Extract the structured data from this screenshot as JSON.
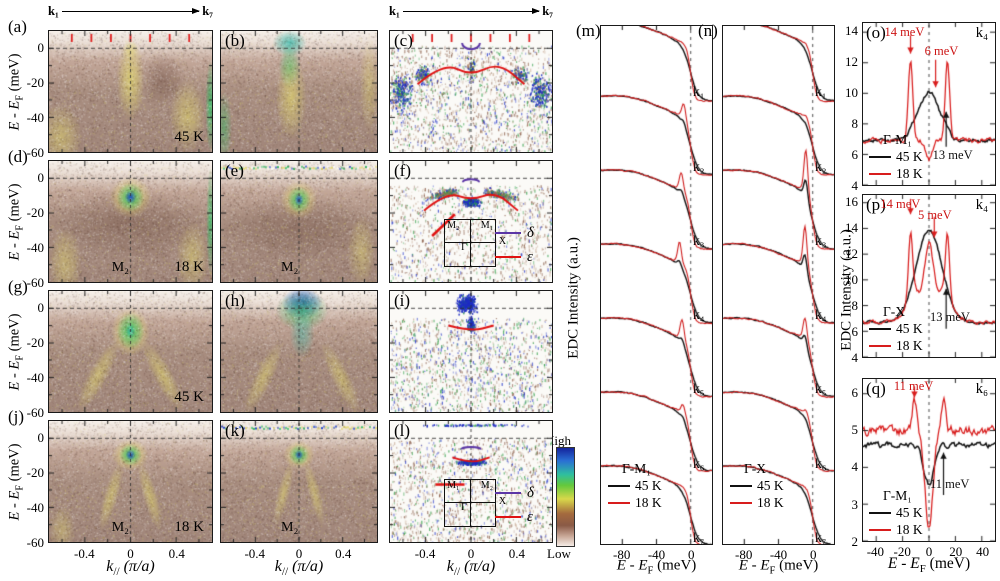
{
  "colors": {
    "red_18k": "#d81d1d",
    "black_45k": "#111111",
    "delta_purple": "#5b36a6",
    "epsilon_red": "#e01212"
  },
  "top_axis": {
    "start": "k₁",
    "end": "k₇"
  },
  "axis": {
    "e": "E",
    "minus": " - ",
    "f_sub": "F",
    "e_unit": " (meV)",
    "k": "k",
    "k_sub": "//",
    "k_unit": " (π/a)",
    "edc_ylabel": "EDC Intensity (a.u.)"
  },
  "left_grid": {
    "yticks": [
      "0",
      "-20",
      "-40",
      "-60"
    ],
    "xticks": [
      "-0.4",
      "0",
      "0.4"
    ],
    "band_legend": {
      "delta": "δ",
      "epsilon": "ε"
    },
    "panels": [
      {
        "id": "a",
        "label": "(a)",
        "temp": "45 K"
      },
      {
        "id": "b",
        "label": "(b)"
      },
      {
        "id": "c",
        "label": "(c)"
      },
      {
        "id": "d",
        "label": "(d)",
        "temp": "18 K",
        "point": "M₂"
      },
      {
        "id": "e",
        "label": "(e)",
        "point": "M₂"
      },
      {
        "id": "f",
        "label": "(f)",
        "inset": {
          "tl": "M₂",
          "tr": "M₁",
          "x": "X",
          "g": "Γ"
        }
      },
      {
        "id": "g",
        "label": "(g)",
        "temp": "45 K"
      },
      {
        "id": "h",
        "label": "(h)"
      },
      {
        "id": "i",
        "label": "(i)"
      },
      {
        "id": "j",
        "label": "(j)",
        "temp": "18 K",
        "point": "M₂"
      },
      {
        "id": "k",
        "label": "(k)",
        "point": "M₂"
      },
      {
        "id": "l",
        "label": "(l)",
        "inset": {
          "tl": "M₁",
          "tr": "M₂",
          "x": "X",
          "g": "Γ"
        }
      }
    ]
  },
  "colorbar": {
    "high": "High",
    "low": "Low"
  },
  "legend_temps": {
    "t45": "45 K",
    "t18": "18 K"
  },
  "edc": {
    "k_labels": [
      "k₁",
      "k₂",
      "k₃",
      "k₄",
      "k₅",
      "k₆",
      "k₇"
    ],
    "xticks": [
      "-80",
      "-40",
      "0"
    ],
    "panels": [
      {
        "id": "m",
        "label": "(m)",
        "legend_title": "Γ-M₁"
      },
      {
        "id": "n",
        "label": "(n)",
        "legend_title": "Γ-X"
      }
    ]
  },
  "sym": {
    "xticks": [
      "-40",
      "-20",
      "0",
      "20",
      "40"
    ],
    "panels": [
      {
        "id": "o",
        "label": "(o)",
        "k": "k₄",
        "legend_title": "Γ-M₁",
        "yticks": [
          "14",
          "12",
          "10",
          "8",
          "6",
          "4"
        ],
        "ann": [
          "14 meV",
          "6 meV",
          "13 meV"
        ]
      },
      {
        "id": "p",
        "label": "(p)",
        "k": "k₄",
        "legend_title": "Γ-X",
        "yticks": [
          "16",
          "14",
          "12",
          "10",
          "8",
          "6",
          "4"
        ],
        "ann": [
          "14 meV",
          "5 meV",
          "13 meV"
        ]
      },
      {
        "id": "q",
        "label": "(q)",
        "k": "k₆",
        "legend_title": "Γ-M₁",
        "yticks": [
          "6",
          "5",
          "4",
          "3",
          "2"
        ],
        "ann": [
          "11 meV",
          "11 meV"
        ]
      }
    ]
  },
  "chart_data": [
    {
      "type": "heatmap",
      "panels": [
        "a",
        "b"
      ],
      "temperature": "45 K",
      "x_axis": "k// (pi/a)",
      "x_ticks": [
        -0.4,
        0,
        0.4
      ],
      "y_axis": "E - EF (meV)",
      "y_ticks": [
        0,
        -20,
        -40,
        -60
      ],
      "description": "ARPES intensity maps at 45 K near M2; momentum cut k1->k7 marked by red ticks along the top"
    },
    {
      "type": "heatmap",
      "panels": [
        "d",
        "e"
      ],
      "temperature": "18 K",
      "high_symmetry_point": "M2",
      "x_ticks": [
        -0.4,
        0,
        0.4
      ],
      "y_ticks": [
        0,
        -20,
        -40,
        -60
      ],
      "description": "ARPES maps at 18 K showing a sharp coherent spot around -12 meV at M2"
    },
    {
      "type": "heatmap",
      "panels": [
        "g",
        "h"
      ],
      "temperature": "45 K",
      "x_ticks": [
        -0.4,
        0,
        0.4
      ],
      "y_ticks": [
        0,
        -20,
        -40,
        -60
      ],
      "description": "ARPES maps at 45 K, second cut, broad electron-like band bottom near -13 meV"
    },
    {
      "type": "heatmap",
      "panels": [
        "j",
        "k"
      ],
      "temperature": "18 K",
      "high_symmetry_point": "M2",
      "x_ticks": [
        -0.4,
        0,
        0.4
      ],
      "y_ticks": [
        0,
        -20,
        -40,
        -60
      ],
      "description": "ARPES maps at 18 K with sharpened quasiparticle spot at M2"
    },
    {
      "type": "heatmap",
      "panels": [
        "c",
        "f",
        "i",
        "l"
      ],
      "description": "Curvature-analysis images with extracted band dispersions: delta band (purple) and epsilon band (red); insets show Brillouin zone quadrant with Gamma, X, M1, M2",
      "legend": [
        "delta",
        "epsilon"
      ],
      "colorbar": [
        "Low",
        "High"
      ]
    },
    {
      "type": "line",
      "panel": "m",
      "title": "EDCs along Gamma-M1 at k1-k7",
      "x_axis": "E - EF (meV)",
      "x_range": [
        -105,
        25
      ],
      "x_ticks": [
        -80,
        -40,
        0
      ],
      "series": [
        {
          "name": "45 K",
          "color": "black"
        },
        {
          "name": "18 K",
          "color": "red"
        }
      ],
      "curves": [
        "k1",
        "k2",
        "k3",
        "k4",
        "k5",
        "k6",
        "k7"
      ],
      "description": "18 K EDCs develop sharp coherence peaks near -10 meV for k2-k6"
    },
    {
      "type": "line",
      "panel": "n",
      "title": "EDCs along Gamma-X at k1-k7",
      "x_axis": "E - EF (meV)",
      "x_range": [
        -105,
        25
      ],
      "x_ticks": [
        -80,
        -40,
        0
      ],
      "series": [
        {
          "name": "45 K",
          "color": "black"
        },
        {
          "name": "18 K",
          "color": "red"
        }
      ],
      "curves": [
        "k1",
        "k2",
        "k3",
        "k4",
        "k5",
        "k6",
        "k7"
      ],
      "description": "sharp 18 K peaks strongest at k3 and k4"
    },
    {
      "type": "line",
      "panel": "o",
      "title": "Symmetrized EDC at k4, Gamma-M1",
      "x_axis": "E - EF (meV)",
      "x_range": [
        -50,
        50
      ],
      "x_ticks": [
        -40,
        -20,
        0,
        20,
        40
      ],
      "y_range": [
        4,
        14.6
      ],
      "y_ticks": [
        4,
        6,
        8,
        10,
        12,
        14
      ],
      "series": [
        {
          "name": "45 K",
          "color": "black",
          "peak_at_0_meV": 10.1,
          "shoulder_meV": 13
        },
        {
          "name": "18 K",
          "color": "red",
          "peaks_meV": [
            -14,
            14
          ],
          "peak_height": 12.1,
          "min_at_0": 5.7,
          "inner_feature_meV": 6
        }
      ],
      "annotations": [
        "14 meV",
        "6 meV",
        "13 meV"
      ]
    },
    {
      "type": "line",
      "panel": "p",
      "title": "Symmetrized EDC at k4, Gamma-X",
      "x_axis": "E - EF (meV)",
      "x_range": [
        -50,
        50
      ],
      "x_ticks": [
        -40,
        -20,
        0,
        20,
        40
      ],
      "y_range": [
        4,
        16.6
      ],
      "y_ticks": [
        4,
        6,
        8,
        10,
        12,
        14,
        16
      ],
      "series": [
        {
          "name": "45 K",
          "color": "black",
          "peak_at_0_meV": 13.9,
          "shoulder_meV": 13
        },
        {
          "name": "18 K",
          "color": "red",
          "peaks_meV": [
            -14,
            14
          ],
          "peak_height": 14.6,
          "local_max_at_0": 12.8,
          "inner_feature_meV": 5
        }
      ],
      "annotations": [
        "14 meV",
        "5 meV",
        "13 meV"
      ]
    },
    {
      "type": "line",
      "panel": "q",
      "title": "Symmetrized EDC at k6, Gamma-M1",
      "x_axis": "E - EF (meV)",
      "x_range": [
        -50,
        50
      ],
      "x_ticks": [
        -40,
        -20,
        0,
        20,
        40
      ],
      "y_range": [
        2,
        6.4
      ],
      "y_ticks": [
        2,
        3,
        4,
        5,
        6
      ],
      "series": [
        {
          "name": "45 K",
          "color": "black",
          "baseline": 4.6,
          "dip_at_0": 3.6,
          "shoulder_meV": 11
        },
        {
          "name": "18 K",
          "color": "red",
          "baseline": 5.0,
          "peaks_meV": [
            -11,
            11
          ],
          "peak_height": 5.8,
          "min_at_0": 2.5
        }
      ],
      "annotations": [
        "11 meV",
        "11 meV"
      ]
    }
  ]
}
